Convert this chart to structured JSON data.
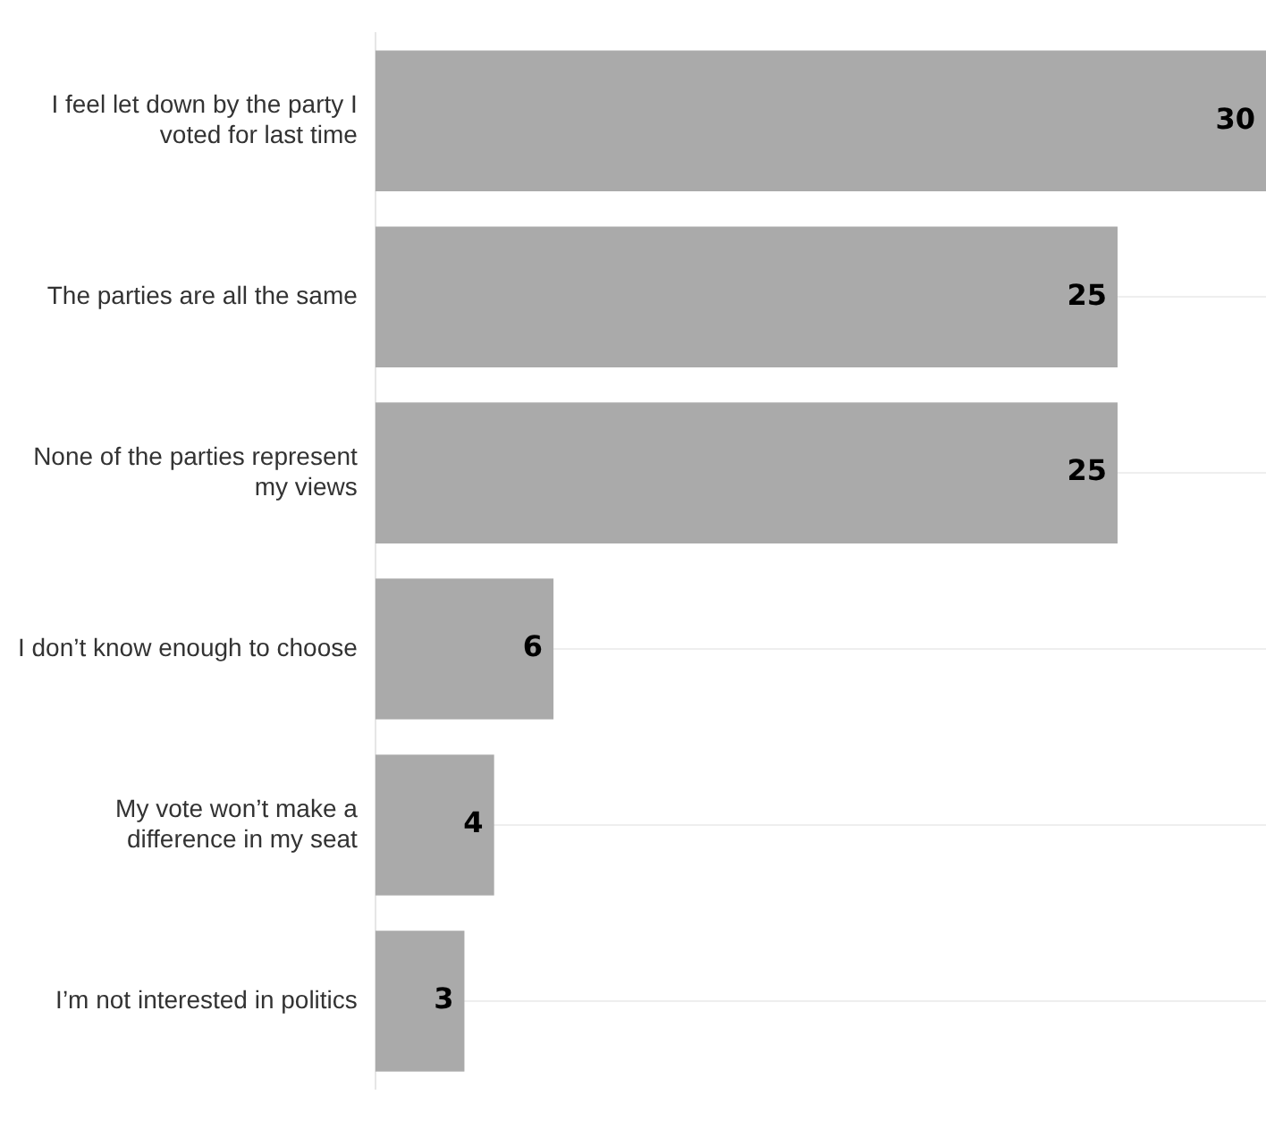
{
  "chart_data": {
    "type": "bar",
    "orientation": "horizontal",
    "categories": [
      "I feel let down by the party I voted for last time",
      "The parties are all the same",
      "None of the parties represent my views",
      "I don’t know enough to choose",
      "My vote won’t make a difference in my seat",
      "I’m not interested in politics"
    ],
    "values": [
      30,
      25,
      25,
      6,
      4,
      3
    ],
    "color": "#aaaaaa",
    "data_labels": true,
    "xlim": [
      0,
      30
    ],
    "grid": "y",
    "legend": false
  }
}
